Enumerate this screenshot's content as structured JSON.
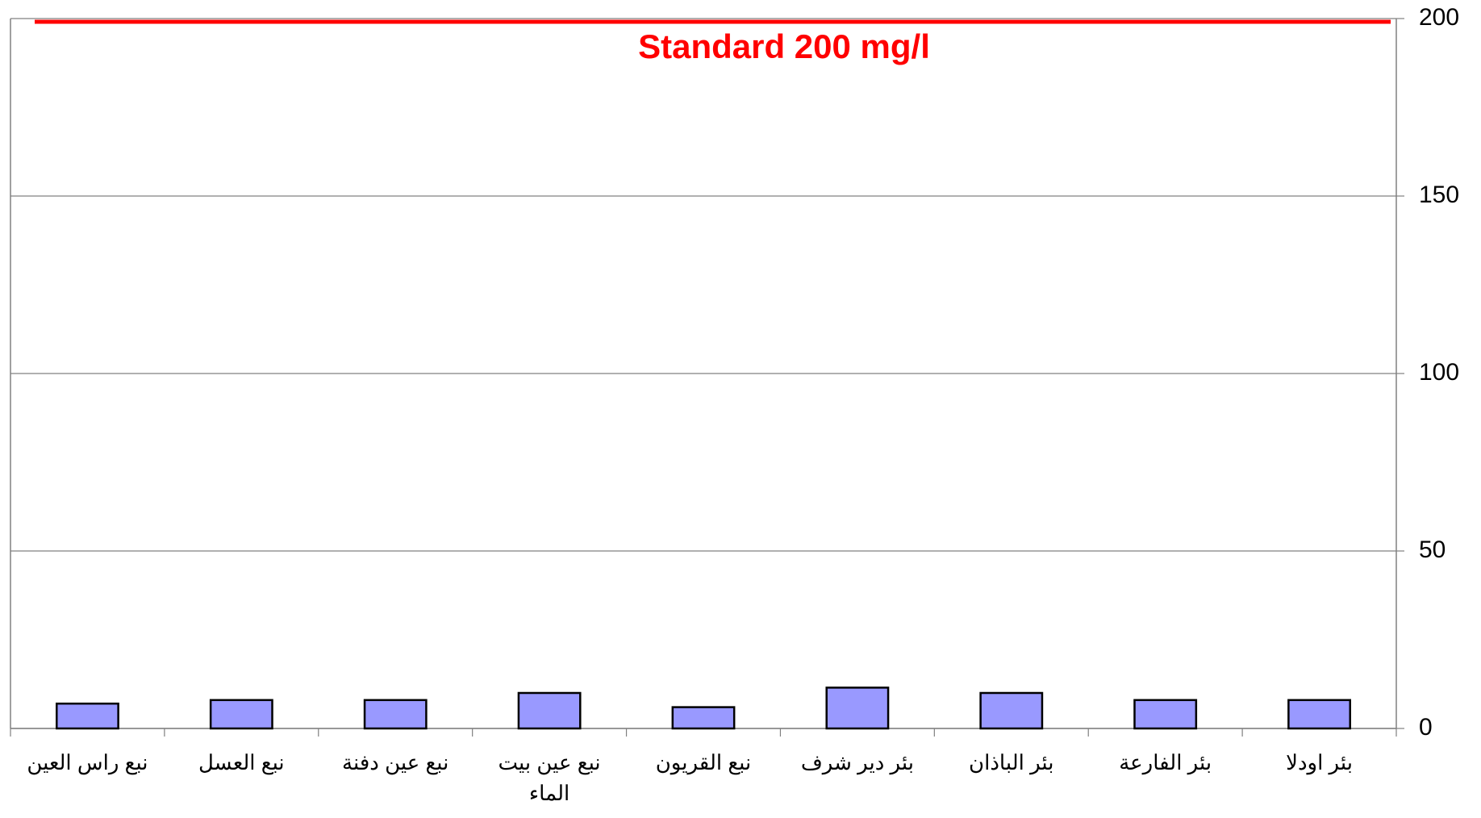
{
  "chart_data": {
    "type": "bar",
    "categories": [
      "نبع راس العين",
      "نبع العسل",
      "نبع عين دفنة",
      "نبع عين بيت الماء",
      "نبع القريون",
      "بئر دير شرف",
      "بئر الباذان",
      "بئر الفارعة",
      "بئر اودلا"
    ],
    "values": [
      7,
      8,
      8,
      10,
      6,
      11.5,
      10,
      8,
      8
    ],
    "color": "#9999ff",
    "ylim": [
      0,
      200
    ],
    "yticks": [
      0,
      50,
      100,
      150,
      200
    ],
    "grid": true,
    "y_axis_side": "right",
    "reference_line": {
      "value": 200,
      "label": "Standard 200 mg/l",
      "color": "#ff0000"
    }
  }
}
